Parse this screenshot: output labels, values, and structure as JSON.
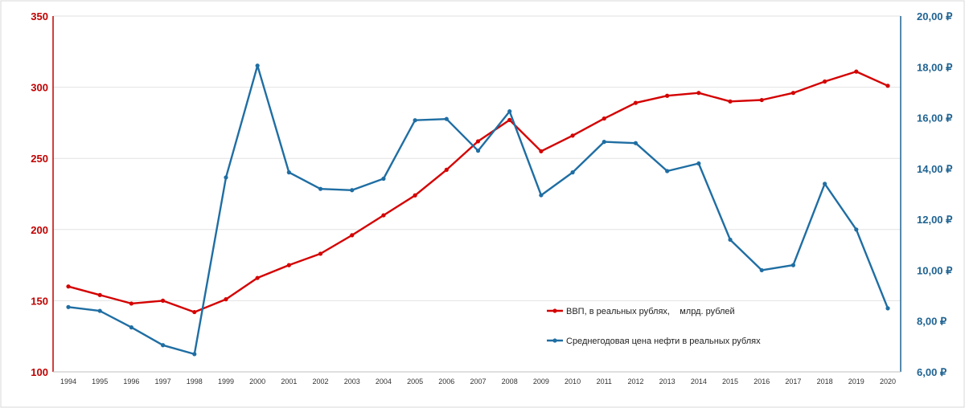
{
  "chart_data": {
    "type": "line",
    "title": "",
    "xlabel": "",
    "ylabel": "",
    "categories": [
      "1994",
      "1995",
      "1996",
      "1997",
      "1998",
      "1999",
      "2000",
      "2001",
      "2002",
      "2003",
      "2004",
      "2005",
      "2006",
      "2007",
      "2008",
      "2009",
      "2010",
      "2011",
      "2012",
      "2013",
      "2014",
      "2015",
      "2016",
      "2017",
      "2018",
      "2019",
      "2020"
    ],
    "y_left": {
      "range": [
        100,
        350
      ],
      "ticks": [
        "100",
        "150",
        "200",
        "250",
        "300",
        "350"
      ],
      "color": "#c00000"
    },
    "y_right": {
      "range": [
        6,
        20
      ],
      "ticks": [
        "6,00 ₽",
        "8,00 ₽",
        "10,00 ₽",
        "12,00 ₽",
        "14,00 ₽",
        "16,00 ₽",
        "18,00 ₽",
        "20,00 ₽"
      ],
      "color": "#1f6391"
    },
    "grid": true,
    "legend_position": "center-right",
    "series": [
      {
        "name": "ВВП, в реальных рублях,    млрд. рублей",
        "axis": "left",
        "color": "#d40000",
        "values": [
          160,
          154,
          148,
          150,
          142,
          151,
          166,
          175,
          183,
          196,
          210,
          224,
          242,
          262,
          277,
          255,
          266,
          278,
          289,
          294,
          296,
          290,
          291,
          296,
          304,
          311,
          301
        ]
      },
      {
        "name": "Среднегодовая цена нефти в реальных рублях",
        "axis": "right",
        "color": "#1f6ea3",
        "values": [
          8.55,
          8.4,
          7.75,
          7.05,
          6.7,
          13.65,
          18.05,
          13.85,
          13.2,
          13.15,
          13.6,
          15.9,
          15.95,
          14.7,
          16.25,
          12.95,
          13.85,
          15.05,
          15.0,
          13.9,
          14.2,
          11.2,
          10.0,
          10.2,
          13.4,
          11.6,
          8.5
        ]
      }
    ]
  }
}
